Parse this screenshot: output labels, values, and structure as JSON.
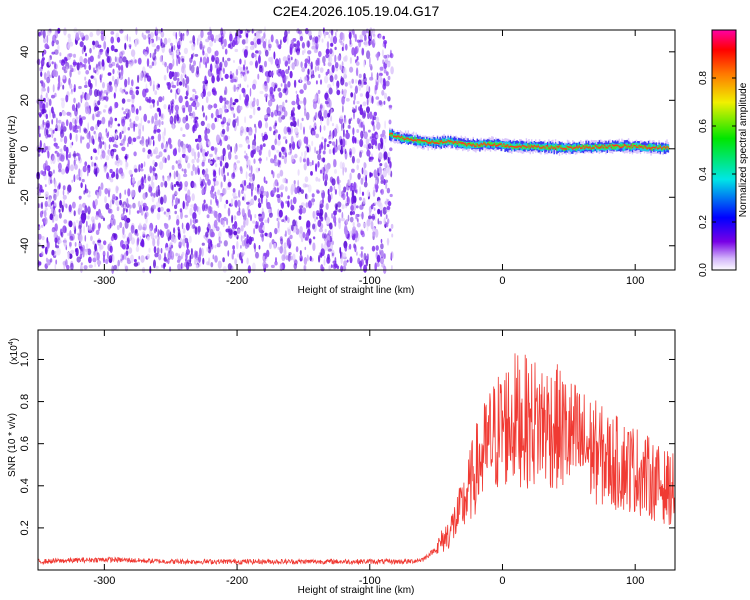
{
  "title": "C2E4.2026.105.19.04.G17",
  "colors": {
    "snr_line": "#f03a33",
    "scatter": "#7a1ff0",
    "axis": "#000000"
  },
  "chart_data": [
    {
      "type": "heatmap",
      "xlabel": "Height of straight line (km)",
      "ylabel": "Frequency (Hz)",
      "xlim": [
        -350,
        130
      ],
      "ylim": [
        -50,
        49
      ],
      "x_ticks": [
        "-300",
        "-200",
        "-100",
        "0",
        "100"
      ],
      "x_tick_values": [
        -300,
        -200,
        -100,
        0,
        100
      ],
      "y_ticks": [
        "-40",
        "-20",
        "0",
        "20",
        "40"
      ],
      "y_tick_values": [
        -40,
        -20,
        0,
        20,
        40
      ],
      "noise_region_x": [
        -350,
        -83
      ],
      "signal_track": {
        "x": [
          -85,
          -80,
          -70,
          -60,
          -50,
          -40,
          -30,
          -20,
          -10,
          0,
          10,
          20,
          40,
          60,
          80,
          100,
          110,
          125
        ],
        "frequency": [
          6,
          5,
          4,
          3,
          2.5,
          3,
          2,
          1.5,
          2,
          1.5,
          1,
          1,
          0.5,
          0.5,
          1,
          1,
          0.5,
          0.5
        ]
      },
      "colorbar": {
        "label": "Normalized spectral amplitude",
        "range": [
          0,
          1
        ],
        "ticks": [
          "0.0",
          "0.2",
          "0.4",
          "0.6",
          "0.8"
        ],
        "tick_values": [
          0,
          0.2,
          0.4,
          0.6,
          0.8
        ]
      }
    },
    {
      "type": "line",
      "xlabel": "Height of straight line (km)",
      "ylabel": "SNR (10 * v/v)",
      "y_multiplier": "(x10",
      "y_multiplier_exp": "4",
      "xlim": [
        -350,
        130
      ],
      "ylim": [
        0,
        1.14
      ],
      "x_ticks": [
        "-300",
        "-200",
        "-100",
        "0",
        "100"
      ],
      "x_tick_values": [
        -300,
        -200,
        -100,
        0,
        100
      ],
      "y_ticks": [
        "0.2",
        "0.4",
        "0.6",
        "0.8",
        "1.0"
      ],
      "y_tick_values": [
        0.2,
        0.4,
        0.6,
        0.8,
        1.0
      ],
      "series": [
        {
          "x": [
            -350,
            -300,
            -250,
            -200,
            -150,
            -100,
            -70,
            -60,
            -50,
            -40,
            -30,
            -20,
            -10,
            0,
            10,
            20,
            30,
            40,
            50,
            60,
            70,
            80,
            90,
            100,
            110,
            120,
            130
          ],
          "values": [
            0.04,
            0.05,
            0.04,
            0.04,
            0.04,
            0.04,
            0.04,
            0.05,
            0.1,
            0.18,
            0.3,
            0.48,
            0.6,
            0.68,
            0.72,
            0.7,
            0.7,
            0.68,
            0.64,
            0.6,
            0.56,
            0.52,
            0.5,
            0.48,
            0.44,
            0.4,
            0.38
          ]
        }
      ]
    }
  ]
}
